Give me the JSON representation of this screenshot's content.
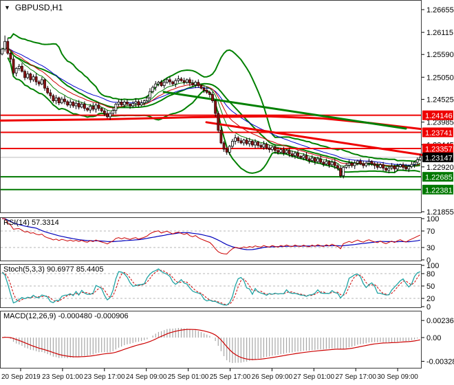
{
  "window": {
    "symbol_label": "GBPUSD,H1",
    "dropdown_icon": "▼"
  },
  "colors": {
    "background": "#ffffff",
    "panel_border": "#3a3a3a",
    "bull_candle": "#ffffff",
    "bear_candle": "#8b1414",
    "wick": "#000000",
    "bollinger": "#008000",
    "alligator_jaw": "#0000cc",
    "alligator_teeth": "#cc0000",
    "alligator_lips": "#008000",
    "level_red": "#ee0000",
    "level_green": "#007800",
    "badge_black": "#000000",
    "current_price_line": "#bdbdbd",
    "grid_dashed": "#b5b5b5",
    "rsi_main": "#cc0000",
    "rsi_signal": "#0000bb",
    "stoch_main": "#1fa3a3",
    "stoch_signal": "#cc0000",
    "macd_histogram": "#a6a6a6",
    "macd_signal": "#cc0000",
    "axis_text": "#000000"
  },
  "panels": {
    "rsi": {
      "title": "RSI(14) 57.3314",
      "axis": [
        "100",
        "70",
        "30",
        "0"
      ],
      "dashed_levels": [
        70,
        30
      ]
    },
    "stoch": {
      "title": "Stoch(5,3,3) 90.6977 85.4405",
      "axis": [
        "100",
        "80",
        "50",
        "20",
        "0"
      ],
      "dashed_levels": [
        80,
        50,
        20
      ]
    },
    "macd": {
      "title": "MACD(12,26,9) -0.000480 -0.000906",
      "axis": [
        "0.002366",
        "0.00",
        "-0.003285"
      ]
    }
  },
  "chart_data": {
    "type": "candlestick",
    "title": "GBPUSD,H1",
    "symbol": "GBPUSD",
    "timeframe": "H1",
    "ylim": [
      1.21855,
      1.26655
    ],
    "price_axis_ticks": [
      [
        "1.26655",
        1.26655
      ],
      [
        "1.26115",
        1.26115
      ],
      [
        "1.25590",
        1.2559
      ],
      [
        "1.25050",
        1.2505
      ],
      [
        "1.24525",
        1.24525
      ],
      [
        "1.23985",
        1.23985
      ],
      [
        "1.23445",
        1.23445
      ],
      [
        "1.22920",
        1.2292
      ],
      [
        "1.21855",
        1.21855
      ]
    ],
    "levels": [
      {
        "label": "1.24146",
        "price": 1.24146,
        "color": "red"
      },
      {
        "label": "1.23741",
        "price": 1.23741,
        "color": "red"
      },
      {
        "label": "1.23357",
        "price": 1.23357,
        "color": "red"
      },
      {
        "label": "1.22685",
        "price": 1.22685,
        "color": "green"
      },
      {
        "label": "1.22381",
        "price": 1.22381,
        "color": "green"
      }
    ],
    "current": {
      "label": "1.23147",
      "price": 1.23147
    },
    "trendlines": [
      {
        "name": "ma-200-red",
        "color": "#ee0000",
        "width": 3,
        "points": [
          [
            0,
            1.2402
          ],
          [
            150,
            1.2405
          ],
          [
            280,
            1.241
          ],
          [
            390,
            1.2412
          ],
          [
            470,
            1.2407
          ],
          [
            540,
            1.2396
          ],
          [
            612,
            1.2382
          ]
        ]
      },
      {
        "name": "descending-trendline-red",
        "color": "#ee0000",
        "width": 3,
        "points": [
          [
            300,
            1.2398
          ],
          [
            616,
            1.232
          ]
        ]
      },
      {
        "name": "descending-trendline-green",
        "color": "#008000",
        "width": 3,
        "points": [
          [
            238,
            1.247
          ],
          [
            590,
            1.2383
          ]
        ]
      }
    ],
    "bollinger": {
      "period": 20,
      "deviation": 2
    },
    "alligator": {
      "jaw": 13,
      "teeth": 8,
      "lips": 5
    },
    "rsi_period": 14,
    "rsi_signal_period": 13,
    "stoch_params": [
      5,
      3,
      3
    ],
    "macd_params": [
      12,
      26,
      9
    ],
    "first_open": 1.256,
    "closes": [
      1.2572,
      1.259,
      1.2562,
      1.2548,
      1.2515,
      1.2526,
      1.2531,
      1.2519,
      1.2504,
      1.2513,
      1.2499,
      1.2506,
      1.2494,
      1.2489,
      1.2499,
      1.2479,
      1.2468,
      1.2461,
      1.2449,
      1.2456,
      1.2444,
      1.2453,
      1.2447,
      1.2439,
      1.2446,
      1.2437,
      1.2443,
      1.2434,
      1.2441,
      1.2431,
      1.2427,
      1.2436,
      1.2429,
      1.2439,
      1.2431,
      1.2425,
      1.2419,
      1.2411,
      1.2419,
      1.2426,
      1.2441,
      1.2446,
      1.2439,
      1.2446,
      1.2441,
      1.2437,
      1.2443,
      1.2447,
      1.2439,
      1.2444,
      1.2449,
      1.2456,
      1.2471,
      1.2481,
      1.2489,
      1.2493,
      1.2485,
      1.2493,
      1.2499,
      1.2494,
      1.2489,
      1.2497,
      1.2501,
      1.2497,
      1.2493,
      1.2499,
      1.2491,
      1.2487,
      1.2493,
      1.2485,
      1.2479,
      1.2474,
      1.2469,
      1.2464,
      1.2449,
      1.2419,
      1.2379,
      1.2349,
      1.2334,
      1.2327,
      1.2341,
      1.2353,
      1.2361,
      1.2354,
      1.2349,
      1.2356,
      1.2347,
      1.2353,
      1.2344,
      1.2351,
      1.2343,
      1.2339,
      1.2346,
      1.2337,
      1.2333,
      1.2339,
      1.2331,
      1.2327,
      1.2333,
      1.2325,
      1.2331,
      1.2323,
      1.2319,
      1.2325,
      1.2317,
      1.2314,
      1.2319,
      1.2311,
      1.2307,
      1.2313,
      1.2305,
      1.2311,
      1.2303,
      1.2299,
      1.2305,
      1.2297,
      1.2303,
      1.2295,
      1.2289,
      1.2271,
      1.2291,
      1.2296,
      1.2301,
      1.2295,
      1.2301,
      1.2306,
      1.2299,
      1.2295,
      1.2301,
      1.2305,
      1.2299,
      1.2295,
      1.2291,
      1.2297,
      1.2289,
      1.2284,
      1.2289,
      1.2293,
      1.2287,
      1.2293,
      1.2297,
      1.2291,
      1.2287,
      1.2293,
      1.2298,
      1.2303,
      1.2309,
      1.23147
    ],
    "wick_overrides": {
      "1": {
        "high": 1.2604
      },
      "79": {
        "low": 1.2321
      },
      "119": {
        "low": 1.2266
      }
    },
    "x_labels": [
      "20 Sep 2019",
      "23 Sep 01:00",
      "23 Sep 17:00",
      "24 Sep 09:00",
      "25 Sep 01:00",
      "25 Sep 17:00",
      "26 Sep 09:00",
      "27 Sep 01:00",
      "27 Sep 17:00",
      "30 Sep 09:00"
    ]
  }
}
